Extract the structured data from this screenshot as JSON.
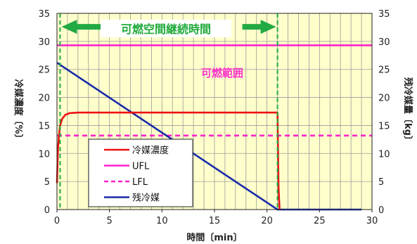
{
  "chart_data": {
    "type": "line",
    "xlabel": "時間〔min〕",
    "ylabel_left": "冷媒濃度〔%〕",
    "ylabel_right": "残冷媒量〔kg〕",
    "xlim": [
      0,
      30
    ],
    "ylim_left": [
      0,
      35
    ],
    "ylim_right": [
      0,
      35
    ],
    "xticks": [
      "0",
      "5",
      "10",
      "15",
      "20",
      "25",
      "30"
    ],
    "yticks_left": [
      "0",
      "5",
      "10",
      "15",
      "20",
      "25",
      "30",
      "35"
    ],
    "yticks_right": [
      "0",
      "5",
      "10",
      "15",
      "20",
      "25",
      "30",
      "35"
    ],
    "grid": true,
    "legend_position": "bottom-left",
    "plot_background": "#ffffcc",
    "series": [
      {
        "name": "冷媒濃度",
        "color": "#ee1111",
        "style": "solid",
        "points": [
          [
            0,
            4.7
          ],
          [
            0.05,
            8
          ],
          [
            0.1,
            11
          ],
          [
            0.2,
            13.3
          ],
          [
            0.3,
            15
          ],
          [
            0.5,
            16.2
          ],
          [
            0.8,
            16.9
          ],
          [
            1.2,
            17.2
          ],
          [
            2,
            17.3
          ],
          [
            10,
            17.3
          ],
          [
            21.0,
            17.3
          ],
          [
            21.1,
            4
          ],
          [
            21.2,
            0
          ]
        ]
      },
      {
        "name": "UFL",
        "color": "#ff22cc",
        "style": "solid",
        "points": [
          [
            0,
            29.3
          ],
          [
            30,
            29.3
          ]
        ]
      },
      {
        "name": "LFL",
        "color": "#ff22cc",
        "style": "dashed",
        "points": [
          [
            0,
            13.2
          ],
          [
            30,
            13.2
          ]
        ]
      },
      {
        "name": "残冷媒",
        "color": "#1a2ba8",
        "style": "solid",
        "points": [
          [
            0,
            26.2
          ],
          [
            21.0,
            0
          ],
          [
            29,
            0
          ]
        ]
      }
    ],
    "markers": {
      "color": "#22aa44",
      "x_values": [
        0.3,
        21.0
      ],
      "arrow_y": 32.6
    },
    "annotations": [
      {
        "id": "flammable-duration",
        "text": "可燃空間継続時間",
        "x": 10.7,
        "y": 32.6
      },
      {
        "id": "flammable-range",
        "text": "可燃範囲",
        "x": 14.8,
        "y": 25.2
      }
    ]
  }
}
